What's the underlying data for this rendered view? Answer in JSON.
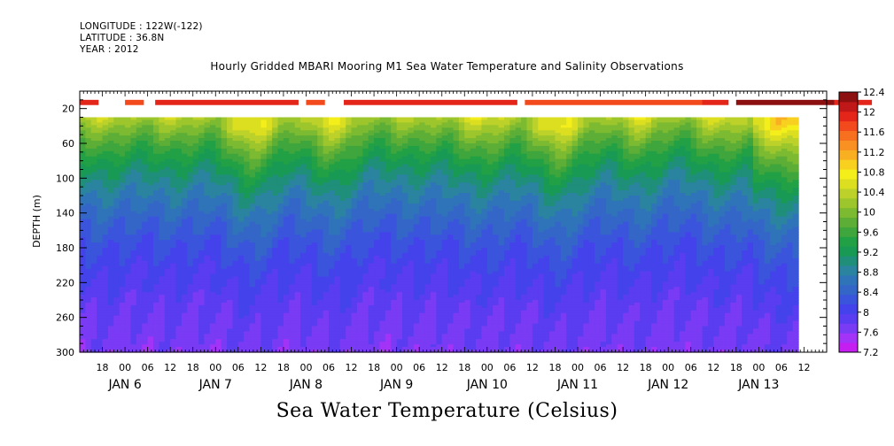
{
  "header": {
    "longitude": "LONGITUDE : 122W(-122)",
    "latitude": "LATITUDE : 36.8N",
    "year": "YEAR : 2012"
  },
  "chart_data": {
    "type": "heatmap",
    "title": "Hourly Gridded MBARI Mooring M1 Sea Water Temperature and Salinity Observations",
    "xlabel": "",
    "ylabel": "DEPTH (m)",
    "colorbar_title": "Sea Water Temperature (Celsius)",
    "y_axis": {
      "range": [
        0,
        300
      ],
      "inverted": true,
      "ticks": [
        20,
        60,
        100,
        140,
        180,
        220,
        260,
        300
      ]
    },
    "x_axis": {
      "unit": "hours since 2012-01-05 12:00",
      "range": [
        0,
        198
      ],
      "hour_ticks": [
        {
          "t": 6,
          "label": "18"
        },
        {
          "t": 12,
          "label": "00"
        },
        {
          "t": 18,
          "label": "06"
        },
        {
          "t": 24,
          "label": "12"
        },
        {
          "t": 30,
          "label": "18"
        },
        {
          "t": 36,
          "label": "00"
        },
        {
          "t": 42,
          "label": "06"
        },
        {
          "t": 48,
          "label": "12"
        },
        {
          "t": 54,
          "label": "18"
        },
        {
          "t": 60,
          "label": "00"
        },
        {
          "t": 66,
          "label": "06"
        },
        {
          "t": 72,
          "label": "12"
        },
        {
          "t": 78,
          "label": "18"
        },
        {
          "t": 84,
          "label": "00"
        },
        {
          "t": 90,
          "label": "06"
        },
        {
          "t": 96,
          "label": "12"
        },
        {
          "t": 102,
          "label": "18"
        },
        {
          "t": 108,
          "label": "00"
        },
        {
          "t": 114,
          "label": "06"
        },
        {
          "t": 120,
          "label": "12"
        },
        {
          "t": 126,
          "label": "18"
        },
        {
          "t": 132,
          "label": "00"
        },
        {
          "t": 138,
          "label": "06"
        },
        {
          "t": 144,
          "label": "12"
        },
        {
          "t": 150,
          "label": "18"
        },
        {
          "t": 156,
          "label": "00"
        },
        {
          "t": 162,
          "label": "06"
        },
        {
          "t": 168,
          "label": "12"
        },
        {
          "t": 174,
          "label": "18"
        },
        {
          "t": 180,
          "label": "00"
        },
        {
          "t": 186,
          "label": "06"
        },
        {
          "t": 192,
          "label": "12"
        }
      ],
      "date_labels": [
        {
          "t": 12,
          "label": "JAN  6"
        },
        {
          "t": 36,
          "label": "JAN  7"
        },
        {
          "t": 60,
          "label": "JAN  8"
        },
        {
          "t": 84,
          "label": "JAN  9"
        },
        {
          "t": 108,
          "label": "JAN 10"
        },
        {
          "t": 132,
          "label": "JAN 11"
        },
        {
          "t": 156,
          "label": "JAN 12"
        },
        {
          "t": 180,
          "label": "JAN 13"
        }
      ]
    },
    "colorbar": {
      "levels": [
        7.2,
        7.4,
        7.6,
        7.8,
        8.0,
        8.2,
        8.4,
        8.6,
        8.8,
        9.0,
        9.2,
        9.4,
        9.6,
        9.8,
        10.0,
        10.2,
        10.4,
        10.6,
        10.8,
        11.0,
        11.2,
        11.4,
        11.6,
        11.8,
        12.0,
        12.2,
        12.4
      ],
      "labels": [
        "7.2",
        "7.6",
        "8",
        "8.4",
        "8.8",
        "9.2",
        "9.6",
        "10",
        "10.4",
        "10.8",
        "11.2",
        "11.6",
        "12",
        "12.4"
      ],
      "colors": [
        "#c41ef0",
        "#a333f7",
        "#7a3bf5",
        "#5a3df0",
        "#4442ea",
        "#3a55dc",
        "#3466c8",
        "#2f74b8",
        "#2a84a0",
        "#1f8f7a",
        "#189a55",
        "#22a046",
        "#3ea63c",
        "#5cae36",
        "#7cba32",
        "#9cc62c",
        "#bcd22a",
        "#dcde20",
        "#f4ee1a",
        "#f8d020",
        "#f8b022",
        "#f89022",
        "#f67020",
        "#f24a1c",
        "#e4261a",
        "#c01818",
        "#8c1010"
      ]
    },
    "surface_band": {
      "depth_range": [
        10,
        16
      ],
      "segments": [
        {
          "t0": 0,
          "t1": 5,
          "value": 12.1
        },
        {
          "t0": 12,
          "t1": 17,
          "value": 11.8
        },
        {
          "t0": 20,
          "t1": 58,
          "value": 12.1
        },
        {
          "t0": 60,
          "t1": 65,
          "value": 11.8
        },
        {
          "t0": 70,
          "t1": 116,
          "value": 12.1
        },
        {
          "t0": 118,
          "t1": 165,
          "value": 11.8
        },
        {
          "t0": 165,
          "t1": 172,
          "value": 12.0
        },
        {
          "t0": 174,
          "t1": 200,
          "value": 12.5
        },
        {
          "t0": 200,
          "t1": 210,
          "value": 12.1
        }
      ]
    },
    "contour_field": {
      "depth_range": [
        30,
        300
      ],
      "time_range": [
        0,
        190
      ],
      "surface_temp_approx": 10.6,
      "bottom_temp_approx": 7.4
    }
  }
}
